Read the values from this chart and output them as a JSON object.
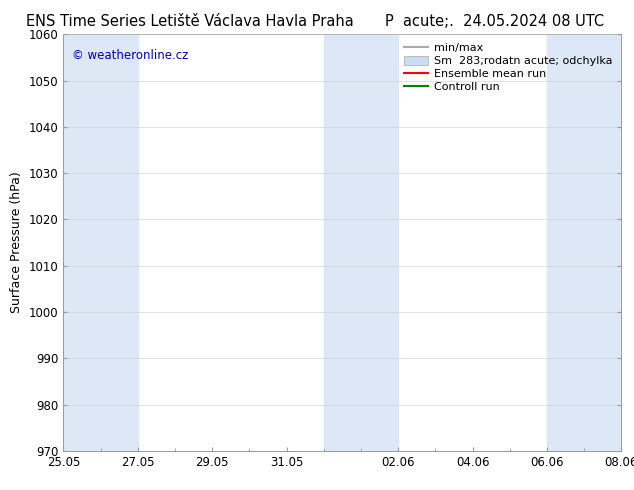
{
  "title_left": "ENS Time Series Letiště Václava Havla Praha",
  "title_right": "P  acute;.  24.05.2024 08 UTC",
  "ylabel": "Surface Pressure (hPa)",
  "ylim": [
    970,
    1060
  ],
  "yticks": [
    970,
    980,
    990,
    1000,
    1010,
    1020,
    1030,
    1040,
    1050,
    1060
  ],
  "xtick_labels": [
    "25.05",
    "27.05",
    "29.05",
    "31.05",
    "02.06",
    "04.06",
    "06.06",
    "08.06"
  ],
  "xtick_positions": [
    0,
    2,
    4,
    6,
    9,
    11,
    13,
    15
  ],
  "x_min": 0,
  "x_max": 15,
  "fig_bg_color": "#ffffff",
  "plot_bg_color": "#ffffff",
  "shaded_bands": [
    {
      "x_start": 0,
      "x_end": 2,
      "color": "#dce8f5"
    },
    {
      "x_start": 7,
      "x_end": 9,
      "color": "#dce8f5"
    },
    {
      "x_start": 13,
      "x_end": 15,
      "color": "#dce8f5"
    }
  ],
  "legend_labels": [
    "min/max",
    "Sm  283;rodatn acute; odchylka",
    "Ensemble mean run",
    "Controll run"
  ],
  "legend_handle_colors": [
    "#aaaaaa",
    "#c8ddf0",
    "#ff0000",
    "#008000"
  ],
  "watermark": "© weatheronline.cz",
  "watermark_color": "#0000bb",
  "title_fontsize": 10.5,
  "axis_label_fontsize": 9,
  "tick_fontsize": 8.5,
  "legend_fontsize": 8
}
